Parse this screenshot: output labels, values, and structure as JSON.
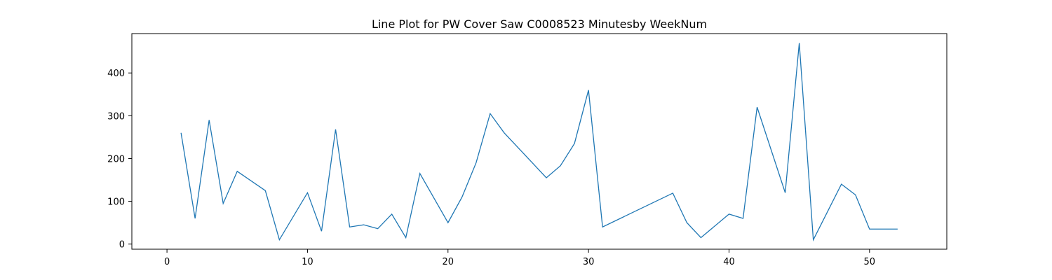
{
  "chart_data": {
    "type": "line",
    "title": "Line Plot for PW Cover Saw C0008523 Minutesby WeekNum",
    "xlabel": "",
    "ylabel": "",
    "xlim": [
      -2.5,
      55.5
    ],
    "ylim": [
      -12,
      492
    ],
    "xticks": [
      0,
      10,
      20,
      30,
      40,
      50
    ],
    "yticks": [
      0,
      100,
      200,
      300,
      400
    ],
    "grid": false,
    "line_color": "#1f77b4",
    "series": [
      {
        "x": [
          1,
          2,
          3,
          4,
          5,
          7,
          8,
          10,
          11,
          12,
          13,
          14,
          15,
          16,
          17,
          18,
          20,
          21,
          22,
          23,
          24,
          27,
          28,
          29,
          30,
          31,
          36,
          37,
          38,
          40,
          41,
          42,
          44,
          45,
          46,
          48,
          49,
          50,
          52
        ],
        "values": [
          260,
          60,
          290,
          95,
          170,
          125,
          10,
          120,
          30,
          268,
          40,
          45,
          36,
          70,
          15,
          165,
          50,
          110,
          190,
          305,
          260,
          155,
          183,
          235,
          360,
          40,
          119,
          50,
          15,
          70,
          60,
          320,
          120,
          470,
          10,
          140,
          115,
          35,
          35
        ]
      }
    ]
  }
}
